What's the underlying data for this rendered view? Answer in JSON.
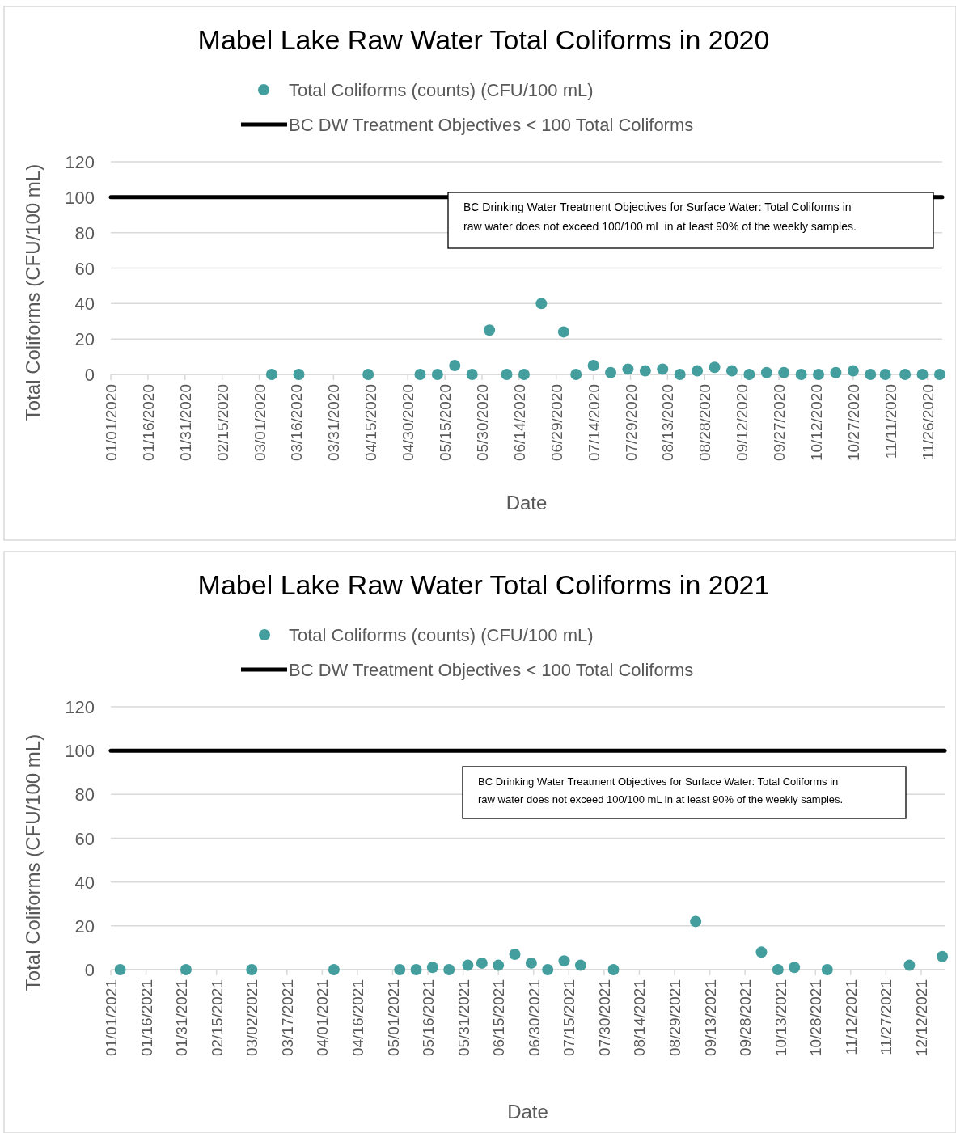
{
  "chart_data": [
    {
      "type": "scatter",
      "title": "Mabel Lake Raw Water Total Coliforms in 2020",
      "xlabel": "Date",
      "ylabel": "Total Coliforms (CFU/100 mL)",
      "series": [
        {
          "name": "Total Coliforms (counts) (CFU/100 mL)",
          "color": "#449e9e",
          "x": [
            "2020-03-06",
            "2020-03-17",
            "2020-04-14",
            "2020-05-05",
            "2020-05-12",
            "2020-05-19",
            "2020-05-26",
            "2020-06-02",
            "2020-06-09",
            "2020-06-16",
            "2020-06-23",
            "2020-07-02",
            "2020-07-07",
            "2020-07-14",
            "2020-07-21",
            "2020-07-28",
            "2020-08-04",
            "2020-08-11",
            "2020-08-18",
            "2020-08-25",
            "2020-09-01",
            "2020-09-08",
            "2020-09-15",
            "2020-09-22",
            "2020-09-29",
            "2020-10-06",
            "2020-10-13",
            "2020-10-20",
            "2020-10-27",
            "2020-11-03",
            "2020-11-09",
            "2020-11-17",
            "2020-11-24",
            "2020-12-01"
          ],
          "values": [
            0,
            0,
            0,
            0,
            0,
            5,
            0,
            25,
            0,
            0,
            40,
            24,
            0,
            5,
            1,
            3,
            2,
            3,
            0,
            2,
            4,
            2,
            0,
            1,
            1,
            0,
            0,
            1,
            2,
            0,
            0,
            0,
            0,
            0
          ]
        }
      ],
      "ref_lines": [
        {
          "axis": "y",
          "value": 100,
          "label": "BC DW Treatment Objectives < 100 Total Coliforms",
          "color": "#000000"
        }
      ],
      "annotations": [
        "BC Drinking Water Treatment Objectives for Surface Water: Total Coliforms in raw water does not exceed 100/100 mL in at least 90% of the weekly samples."
      ],
      "xlim": [
        "2020-01-01",
        "2020-12-02"
      ],
      "xticks": [
        {
          "value": "2020-01-01",
          "label": "01/01/2020"
        },
        {
          "value": "2020-01-16",
          "label": "01/16/2020"
        },
        {
          "value": "2020-01-31",
          "label": "01/31/2020"
        },
        {
          "value": "2020-02-15",
          "label": "02/15/2020"
        },
        {
          "value": "2020-03-01",
          "label": "03/01/2020"
        },
        {
          "value": "2020-03-16",
          "label": "03/16/2020"
        },
        {
          "value": "2020-03-31",
          "label": "03/31/2020"
        },
        {
          "value": "2020-04-15",
          "label": "04/15/2020"
        },
        {
          "value": "2020-04-30",
          "label": "04/30/2020"
        },
        {
          "value": "2020-05-15",
          "label": "05/15/2020"
        },
        {
          "value": "2020-05-30",
          "label": "05/30/2020"
        },
        {
          "value": "2020-06-14",
          "label": "06/14/2020"
        },
        {
          "value": "2020-06-29",
          "label": "06/29/2020"
        },
        {
          "value": "2020-07-14",
          "label": "07/14/2020"
        },
        {
          "value": "2020-07-29",
          "label": "07/29/2020"
        },
        {
          "value": "2020-08-13",
          "label": "08/13/2020"
        },
        {
          "value": "2020-08-28",
          "label": "08/28/2020"
        },
        {
          "value": "2020-09-12",
          "label": "09/12/2020"
        },
        {
          "value": "2020-09-27",
          "label": "09/27/2020"
        },
        {
          "value": "2020-10-12",
          "label": "10/12/2020"
        },
        {
          "value": "2020-10-27",
          "label": "10/27/2020"
        },
        {
          "value": "2020-11-11",
          "label": "11/11/2020"
        },
        {
          "value": "2020-11-26",
          "label": "11/26/2020"
        }
      ],
      "ylim": [
        0,
        120
      ],
      "yticks": [
        0,
        20,
        40,
        60,
        80,
        100,
        120
      ],
      "grid": "y",
      "legend": "top",
      "marker": "circle"
    },
    {
      "type": "scatter",
      "title": "Mabel Lake Raw Water Total Coliforms in 2021",
      "xlabel": "Date",
      "ylabel": "Total Coliforms (CFU/100 mL)",
      "series": [
        {
          "name": "Total Coliforms (counts) (CFU/100 mL)",
          "color": "#449e9e",
          "x": [
            "2021-01-05",
            "2021-02-02",
            "2021-03-02",
            "2021-04-06",
            "2021-05-04",
            "2021-05-11",
            "2021-05-18",
            "2021-05-25",
            "2021-06-02",
            "2021-06-08",
            "2021-06-15",
            "2021-06-22",
            "2021-06-29",
            "2021-07-06",
            "2021-07-13",
            "2021-07-20",
            "2021-08-03",
            "2021-09-07",
            "2021-10-05",
            "2021-10-12",
            "2021-10-19",
            "2021-11-02",
            "2021-12-07",
            "2021-12-21"
          ],
          "values": [
            0,
            0,
            0,
            0,
            0,
            0,
            1,
            0,
            2,
            3,
            2,
            7,
            3,
            0,
            4,
            2,
            0,
            22,
            8,
            0,
            1,
            0,
            2,
            6
          ]
        }
      ],
      "ref_lines": [
        {
          "axis": "y",
          "value": 100,
          "label": "BC DW Treatment Objectives < 100 Total Coliforms",
          "color": "#000000"
        }
      ],
      "annotations": [
        "BC Drinking Water Treatment Objectives for Surface Water: Total Coliforms in raw water does not exceed 100/100 mL in at least 90% of the weekly samples."
      ],
      "xlim": [
        "2021-01-01",
        "2021-12-22"
      ],
      "xticks": [
        {
          "value": "2021-01-01",
          "label": "01/01/2021"
        },
        {
          "value": "2021-01-16",
          "label": "01/16/2021"
        },
        {
          "value": "2021-01-31",
          "label": "01/31/2021"
        },
        {
          "value": "2021-02-15",
          "label": "02/15/2021"
        },
        {
          "value": "2021-03-02",
          "label": "03/02/2021"
        },
        {
          "value": "2021-03-17",
          "label": "03/17/2021"
        },
        {
          "value": "2021-04-01",
          "label": "04/01/2021"
        },
        {
          "value": "2021-04-16",
          "label": "04/16/2021"
        },
        {
          "value": "2021-05-01",
          "label": "05/01/2021"
        },
        {
          "value": "2021-05-16",
          "label": "05/16/2021"
        },
        {
          "value": "2021-05-31",
          "label": "05/31/2021"
        },
        {
          "value": "2021-06-15",
          "label": "06/15/2021"
        },
        {
          "value": "2021-06-30",
          "label": "06/30/2021"
        },
        {
          "value": "2021-07-15",
          "label": "07/15/2021"
        },
        {
          "value": "2021-07-30",
          "label": "07/30/2021"
        },
        {
          "value": "2021-08-14",
          "label": "08/14/2021"
        },
        {
          "value": "2021-08-29",
          "label": "08/29/2021"
        },
        {
          "value": "2021-09-13",
          "label": "09/13/2021"
        },
        {
          "value": "2021-09-28",
          "label": "09/28/2021"
        },
        {
          "value": "2021-10-13",
          "label": "10/13/2021"
        },
        {
          "value": "2021-10-28",
          "label": "10/28/2021"
        },
        {
          "value": "2021-11-12",
          "label": "11/12/2021"
        },
        {
          "value": "2021-11-27",
          "label": "11/27/2021"
        },
        {
          "value": "2021-12-12",
          "label": "12/12/2021"
        }
      ],
      "ylim": [
        0,
        120
      ],
      "yticks": [
        0,
        20,
        40,
        60,
        80,
        100,
        120
      ],
      "grid": "y",
      "legend": "top",
      "marker": "circle"
    }
  ]
}
